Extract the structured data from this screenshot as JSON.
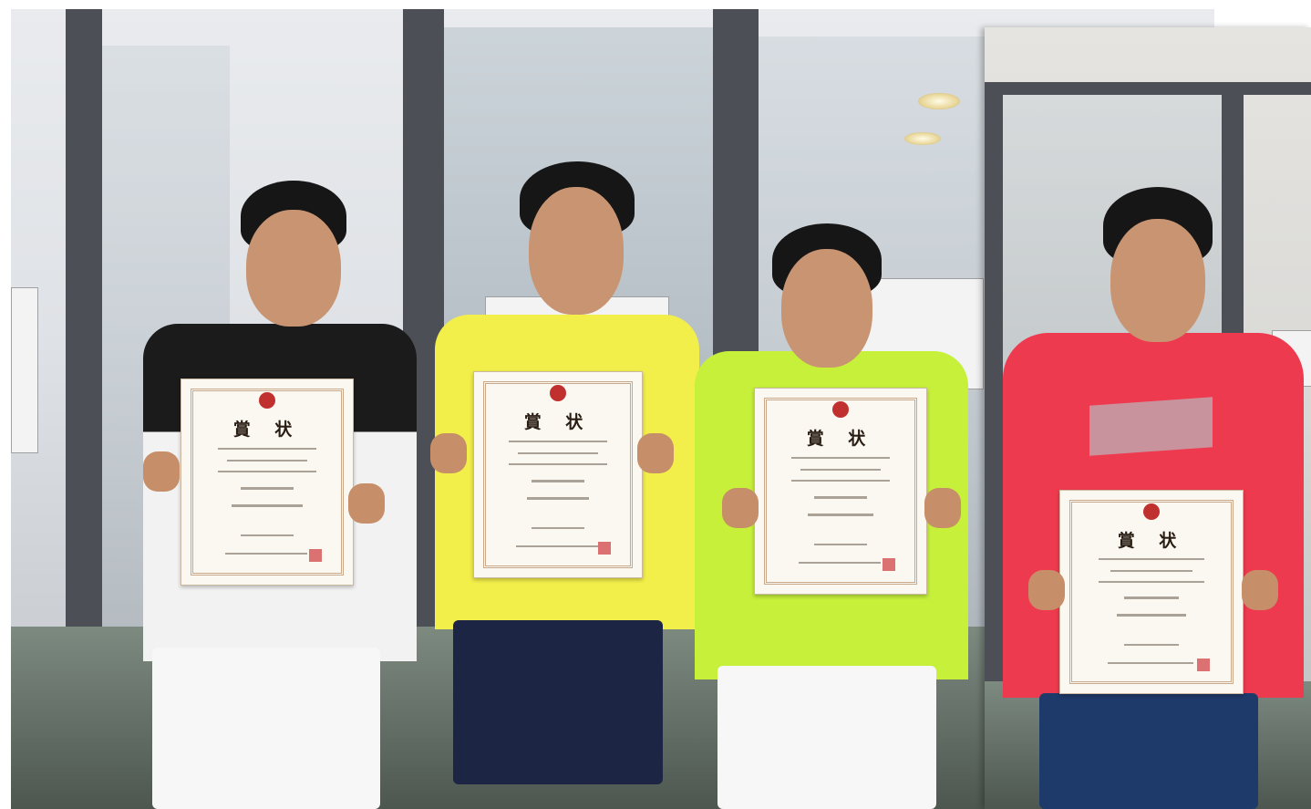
{
  "certificates": [
    {
      "title": "賞 状"
    },
    {
      "title": "賞 状"
    },
    {
      "title": "賞 状"
    },
    {
      "title": "賞 状"
    }
  ],
  "colors": {
    "shirt_black": "#1b1b1b",
    "shirt_yellow": "#f2ee4a",
    "shirt_green": "#c6f03a",
    "hoodie_red": "#ee3a4e",
    "shorts_white": "#f7f7f7",
    "shorts_navy": "#1d2545"
  }
}
